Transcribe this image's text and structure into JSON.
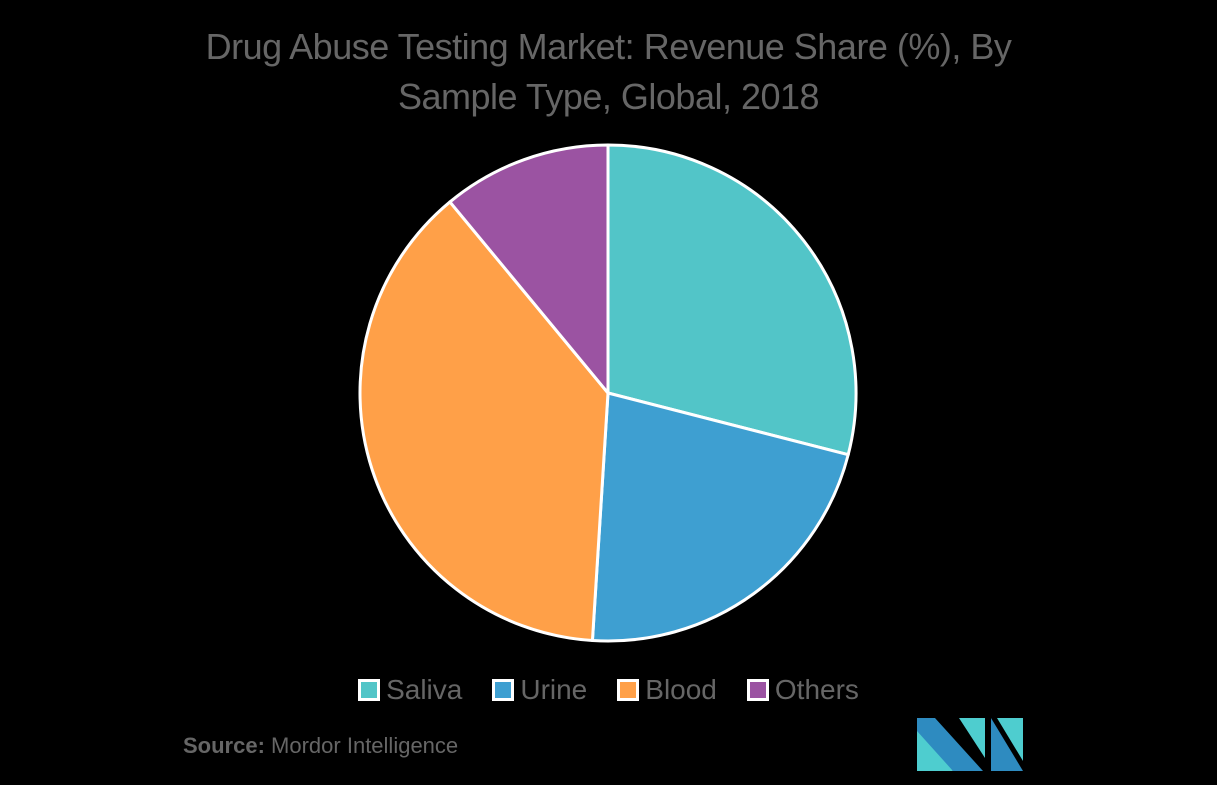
{
  "title": {
    "line1": "Drug Abuse Testing Market: Revenue Share (%), By",
    "line2": "Sample Type, Global, 2018"
  },
  "source": {
    "label": "Source:",
    "value": "Mordor Intelligence"
  },
  "logo": {
    "icon": "mordor-intelligence-logo-icon",
    "colors": [
      "#2e8bc0",
      "#4ecdcf"
    ]
  },
  "legend": [
    {
      "label": "Saliva",
      "color": "#52c5c8"
    },
    {
      "label": "Urine",
      "color": "#3e9fd1"
    },
    {
      "label": "Blood",
      "color": "#ffa048"
    },
    {
      "label": "Others",
      "color": "#9b53a2"
    }
  ],
  "chart_data": {
    "type": "pie",
    "title": "Drug Abuse Testing Market: Revenue Share (%), By Sample Type, Global, 2018",
    "categories": [
      "Saliva",
      "Urine",
      "Blood",
      "Others"
    ],
    "values": [
      29,
      22,
      38,
      11
    ],
    "colors": [
      "#52c5c8",
      "#3e9fd1",
      "#ffa048",
      "#9b53a2"
    ],
    "start_angle_deg": 0,
    "direction": "clockwise",
    "legend_position": "bottom",
    "data_labels": false
  }
}
